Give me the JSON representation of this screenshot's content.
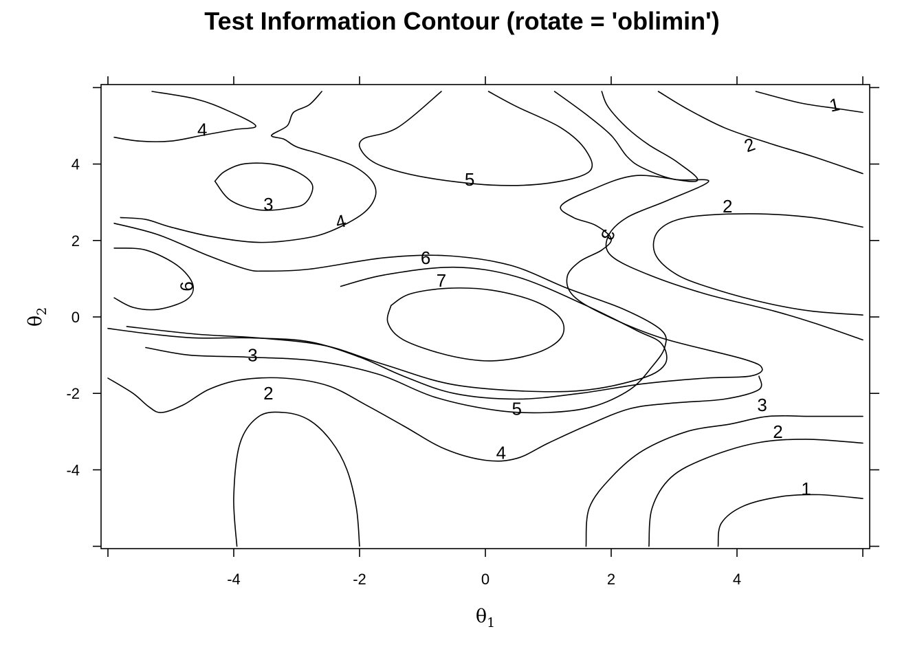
{
  "chart_data": {
    "type": "contour",
    "title": "Test Information Contour (rotate = 'oblimin')",
    "xlabel": {
      "symbol": "θ",
      "subscript": "1"
    },
    "ylabel": {
      "symbol": "θ",
      "subscript": "2"
    },
    "xlim": [
      -6,
      6
    ],
    "ylim": [
      -6,
      6
    ],
    "x_ticks": [
      -4,
      -2,
      0,
      2,
      4
    ],
    "y_ticks": [
      -4,
      -2,
      0,
      2,
      4
    ],
    "grid": false,
    "contour_levels": [
      1,
      2,
      3,
      4,
      5,
      6,
      7
    ],
    "contours": [
      {
        "level": 7,
        "points": [
          [
            -1.5,
            0.3
          ],
          [
            -1.2,
            0.6
          ],
          [
            -0.6,
            0.75
          ],
          [
            0.1,
            0.7
          ],
          [
            0.8,
            0.4
          ],
          [
            1.2,
            -0.05
          ],
          [
            1.2,
            -0.55
          ],
          [
            0.8,
            -0.95
          ],
          [
            0.1,
            -1.15
          ],
          [
            -0.6,
            -1.0
          ],
          [
            -1.3,
            -0.6
          ],
          [
            -1.55,
            -0.15
          ],
          [
            -1.5,
            0.3
          ]
        ]
      },
      {
        "level": 6,
        "points": [
          [
            -2.3,
            0.8
          ],
          [
            -1.6,
            1.1
          ],
          [
            -0.5,
            1.3
          ],
          [
            0.5,
            1.05
          ],
          [
            1.6,
            0.3
          ],
          [
            2.4,
            -0.35
          ],
          [
            2.8,
            -0.7
          ],
          [
            2.85,
            -1.25
          ],
          [
            2.4,
            -1.65
          ],
          [
            1.3,
            -1.95
          ],
          [
            -0.4,
            -1.8
          ],
          [
            -1.6,
            -1.25
          ],
          [
            -2.55,
            -0.75
          ],
          [
            -3.6,
            -0.55
          ],
          [
            -4.6,
            -0.45
          ],
          [
            -5.7,
            -0.25
          ]
        ]
      },
      {
        "level": 6,
        "points": [
          [
            -5.9,
            1.8
          ],
          [
            -5.4,
            1.75
          ],
          [
            -4.9,
            1.35
          ],
          [
            -4.65,
            0.85
          ],
          [
            -4.75,
            0.45
          ],
          [
            -5.2,
            0.2
          ],
          [
            -5.6,
            0.25
          ],
          [
            -5.9,
            0.5
          ]
        ]
      },
      {
        "level": 5,
        "points": [
          [
            -5.4,
            -0.8
          ],
          [
            -4.7,
            -1.0
          ],
          [
            -3.8,
            -1.05
          ],
          [
            -2.7,
            -1.15
          ],
          [
            -1.7,
            -1.5
          ],
          [
            -0.8,
            -2.1
          ],
          [
            0.2,
            -2.45
          ],
          [
            1.0,
            -2.5
          ],
          [
            1.7,
            -2.35
          ],
          [
            2.3,
            -1.9
          ],
          [
            2.65,
            -1.3
          ],
          [
            2.85,
            -0.8
          ],
          [
            2.8,
            -0.35
          ],
          [
            2.2,
            0.2
          ],
          [
            1.3,
            0.75
          ],
          [
            0.4,
            1.35
          ],
          [
            -0.6,
            1.6
          ],
          [
            -1.6,
            1.55
          ],
          [
            -2.8,
            1.25
          ],
          [
            -3.5,
            1.2
          ],
          [
            -3.8,
            1.25
          ],
          [
            -4.4,
            1.6
          ],
          [
            -5.2,
            2.15
          ],
          [
            -5.9,
            2.45
          ]
        ]
      },
      {
        "level": 5,
        "points": [
          [
            -0.7,
            5.9
          ],
          [
            -1.4,
            4.95
          ],
          [
            -1.95,
            4.65
          ],
          [
            -1.95,
            4.3
          ],
          [
            -1.65,
            3.95
          ],
          [
            -0.95,
            3.65
          ],
          [
            0.1,
            3.45
          ],
          [
            1.0,
            3.5
          ],
          [
            1.65,
            3.8
          ],
          [
            1.6,
            4.35
          ],
          [
            1.2,
            4.95
          ],
          [
            0.5,
            5.5
          ],
          [
            0.05,
            5.9
          ]
        ]
      },
      {
        "level": 4,
        "points": [
          [
            -5.8,
            2.6
          ],
          [
            -5.4,
            2.55
          ],
          [
            -5.0,
            2.35
          ],
          [
            -4.35,
            2.1
          ],
          [
            -3.6,
            1.95
          ],
          [
            -2.9,
            2.05
          ],
          [
            -2.45,
            2.25
          ],
          [
            -1.95,
            2.7
          ],
          [
            -1.75,
            3.15
          ],
          [
            -1.8,
            3.55
          ],
          [
            -2.1,
            3.95
          ],
          [
            -2.6,
            4.25
          ],
          [
            -3.0,
            4.45
          ],
          [
            -3.2,
            4.65
          ],
          [
            -3.4,
            4.75
          ],
          [
            -3.15,
            5.0
          ],
          [
            -3.05,
            5.35
          ],
          [
            -2.8,
            5.55
          ],
          [
            -2.6,
            5.9
          ]
        ]
      },
      {
        "level": 4,
        "points": [
          [
            -5.9,
            4.7
          ],
          [
            -5.5,
            4.6
          ],
          [
            -5.0,
            4.6
          ],
          [
            -4.5,
            4.75
          ],
          [
            -4.0,
            4.9
          ],
          [
            -3.65,
            5.0
          ],
          [
            -4.1,
            5.4
          ],
          [
            -4.6,
            5.7
          ],
          [
            -5.3,
            5.9
          ]
        ]
      },
      {
        "level": 4,
        "points": [
          [
            -6.0,
            -0.3
          ],
          [
            -5.3,
            -0.45
          ],
          [
            -4.6,
            -0.55
          ],
          [
            -3.7,
            -0.55
          ],
          [
            -2.8,
            -0.65
          ],
          [
            -2.0,
            -1.05
          ],
          [
            -1.3,
            -1.55
          ],
          [
            -0.5,
            -2.0
          ],
          [
            0.5,
            -2.15
          ],
          [
            1.5,
            -2.0
          ],
          [
            2.5,
            -1.75
          ],
          [
            3.5,
            -1.6
          ],
          [
            4.2,
            -1.55
          ],
          [
            4.4,
            -1.35
          ],
          [
            4.1,
            -1.1
          ],
          [
            2.8,
            -0.55
          ],
          [
            1.9,
            0.05
          ],
          [
            1.4,
            0.55
          ],
          [
            1.3,
            1.05
          ],
          [
            1.5,
            1.45
          ],
          [
            1.85,
            1.75
          ],
          [
            2.0,
            2.05
          ],
          [
            1.75,
            2.4
          ],
          [
            1.4,
            2.6
          ],
          [
            1.2,
            2.9
          ],
          [
            1.65,
            3.3
          ],
          [
            2.4,
            3.7
          ],
          [
            3.35,
            3.55
          ],
          [
            3.05,
            4.05
          ],
          [
            2.6,
            4.5
          ],
          [
            2.25,
            4.95
          ],
          [
            1.95,
            5.5
          ],
          [
            1.85,
            5.9
          ]
        ]
      },
      {
        "level": 3,
        "points": [
          [
            -4.3,
            3.55
          ],
          [
            -4.15,
            3.8
          ],
          [
            -3.85,
            4.0
          ],
          [
            -3.4,
            4.0
          ],
          [
            -3.0,
            3.8
          ],
          [
            -2.75,
            3.45
          ],
          [
            -2.85,
            3.0
          ],
          [
            -3.1,
            2.85
          ],
          [
            -3.6,
            2.8
          ],
          [
            -4.05,
            3.05
          ],
          [
            -4.3,
            3.55
          ]
        ]
      },
      {
        "level": 3,
        "points": [
          [
            -6.0,
            -1.6
          ],
          [
            -5.6,
            -2.0
          ],
          [
            -5.35,
            -2.35
          ],
          [
            -5.15,
            -2.5
          ],
          [
            -4.8,
            -2.3
          ],
          [
            -4.4,
            -1.9
          ],
          [
            -3.9,
            -1.65
          ],
          [
            -3.2,
            -1.6
          ],
          [
            -2.5,
            -1.8
          ],
          [
            -1.9,
            -2.3
          ],
          [
            -1.3,
            -2.85
          ],
          [
            -0.65,
            -3.45
          ],
          [
            0.0,
            -3.75
          ],
          [
            0.5,
            -3.7
          ],
          [
            1.0,
            -3.3
          ],
          [
            1.6,
            -2.85
          ],
          [
            2.3,
            -2.4
          ],
          [
            3.0,
            -2.25
          ],
          [
            3.8,
            -2.15
          ],
          [
            4.35,
            -1.9
          ],
          [
            4.35,
            -1.55
          ]
        ]
      },
      {
        "level": 3,
        "points": [
          [
            1.6,
            -6.0
          ],
          [
            1.65,
            -5.0
          ],
          [
            2.0,
            -4.2
          ],
          [
            2.5,
            -3.5
          ],
          [
            3.2,
            -3.0
          ],
          [
            3.9,
            -2.8
          ],
          [
            4.5,
            -2.6
          ],
          [
            5.2,
            -2.6
          ],
          [
            6.0,
            -2.6
          ]
        ]
      },
      {
        "level": 3,
        "points": [
          [
            1.1,
            5.9
          ],
          [
            1.6,
            5.3
          ],
          [
            2.0,
            4.75
          ],
          [
            2.25,
            4.2
          ],
          [
            2.5,
            3.9
          ],
          [
            3.0,
            3.6
          ],
          [
            3.55,
            3.55
          ],
          [
            2.9,
            3.05
          ],
          [
            2.25,
            2.6
          ],
          [
            1.95,
            2.1
          ],
          [
            2.0,
            1.6
          ],
          [
            2.6,
            1.1
          ],
          [
            3.5,
            0.6
          ],
          [
            4.6,
            0.15
          ],
          [
            5.3,
            -0.2
          ],
          [
            6.0,
            -0.6
          ]
        ]
      },
      {
        "level": 2,
        "points": [
          [
            -3.95,
            -6.0
          ],
          [
            -4.0,
            -4.7
          ],
          [
            -3.9,
            -3.3
          ],
          [
            -3.6,
            -2.6
          ],
          [
            -3.2,
            -2.5
          ],
          [
            -2.8,
            -2.7
          ],
          [
            -2.45,
            -3.25
          ],
          [
            -2.2,
            -4.0
          ],
          [
            -2.05,
            -5.0
          ],
          [
            -2.0,
            -6.0
          ]
        ]
      },
      {
        "level": 2,
        "points": [
          [
            2.6,
            -6.0
          ],
          [
            2.65,
            -5.0
          ],
          [
            2.95,
            -4.2
          ],
          [
            3.5,
            -3.7
          ],
          [
            4.3,
            -3.3
          ],
          [
            5.1,
            -3.2
          ],
          [
            6.0,
            -3.3
          ]
        ]
      },
      {
        "level": 2,
        "points": [
          [
            6.0,
            2.35
          ],
          [
            5.2,
            2.6
          ],
          [
            4.2,
            2.7
          ],
          [
            3.2,
            2.6
          ],
          [
            2.75,
            2.25
          ],
          [
            2.7,
            1.65
          ],
          [
            3.05,
            1.1
          ],
          [
            3.7,
            0.7
          ],
          [
            4.5,
            0.35
          ],
          [
            5.2,
            0.15
          ],
          [
            6.0,
            0.05
          ]
        ]
      },
      {
        "level": 2,
        "points": [
          [
            2.75,
            5.9
          ],
          [
            3.2,
            5.45
          ],
          [
            3.8,
            4.95
          ],
          [
            4.5,
            4.55
          ],
          [
            5.2,
            4.2
          ],
          [
            6.0,
            3.75
          ]
        ]
      },
      {
        "level": 1,
        "points": [
          [
            3.7,
            -6.0
          ],
          [
            3.75,
            -5.4
          ],
          [
            4.1,
            -4.95
          ],
          [
            4.7,
            -4.7
          ],
          [
            5.3,
            -4.65
          ],
          [
            6.0,
            -4.75
          ]
        ]
      },
      {
        "level": 1,
        "points": [
          [
            4.3,
            5.9
          ],
          [
            5.0,
            5.6
          ],
          [
            5.6,
            5.45
          ],
          [
            6.0,
            5.35
          ]
        ]
      }
    ],
    "labels": [
      {
        "text": "7",
        "x": -0.7,
        "y": 0.95,
        "rotate": 0
      },
      {
        "text": "6",
        "x": -0.95,
        "y": 1.55,
        "rotate": 0
      },
      {
        "text": "6",
        "x": -4.75,
        "y": 0.8,
        "rotate": -90
      },
      {
        "text": "5",
        "x": -0.25,
        "y": 3.6,
        "rotate": 0
      },
      {
        "text": "5",
        "x": 0.5,
        "y": -2.4,
        "rotate": 0
      },
      {
        "text": "4",
        "x": -4.5,
        "y": 4.9,
        "rotate": 0
      },
      {
        "text": "4",
        "x": -2.3,
        "y": 2.5,
        "rotate": -15
      },
      {
        "text": "4",
        "x": 0.25,
        "y": -3.55,
        "rotate": 0
      },
      {
        "text": "3",
        "x": -3.45,
        "y": 2.95,
        "rotate": 0
      },
      {
        "text": "3",
        "x": -3.7,
        "y": -1.0,
        "rotate": 0
      },
      {
        "text": "3",
        "x": 1.95,
        "y": 2.15,
        "rotate": 110
      },
      {
        "text": "3",
        "x": 4.4,
        "y": -2.3,
        "rotate": 0
      },
      {
        "text": "2",
        "x": -3.45,
        "y": -2.0,
        "rotate": 0
      },
      {
        "text": "2",
        "x": 3.85,
        "y": 2.9,
        "rotate": 0
      },
      {
        "text": "2",
        "x": 4.2,
        "y": 4.5,
        "rotate": -20
      },
      {
        "text": "2",
        "x": 4.65,
        "y": -3.0,
        "rotate": 0
      },
      {
        "text": "1",
        "x": 5.1,
        "y": -4.5,
        "rotate": 0
      },
      {
        "text": "1",
        "x": 5.55,
        "y": 5.55,
        "rotate": -12
      }
    ]
  }
}
